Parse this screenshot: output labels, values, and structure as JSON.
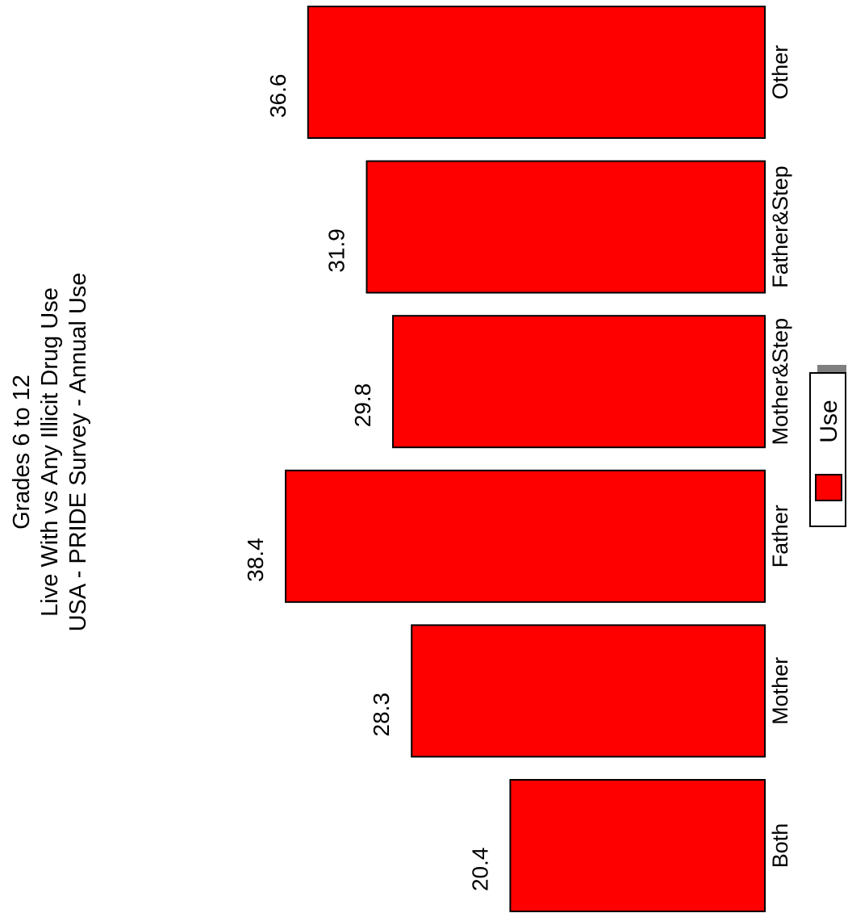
{
  "chart_data": {
    "type": "bar",
    "orientation": "horizontal",
    "title": [
      "Grades 6 to 12",
      "Live With vs Any Illicit Drug Use",
      "USA - PRIDE Survey - Annual Use"
    ],
    "categories": [
      "Both",
      "Mother",
      "Father",
      "Mother&Step",
      "Father&Step",
      "Other"
    ],
    "series": [
      {
        "name": "Use",
        "color": "#ff0000",
        "values": [
          20.4,
          28.3,
          38.4,
          29.8,
          31.9,
          36.6
        ]
      }
    ],
    "value_labels": [
      "20.4",
      "28.3",
      "38.4",
      "29.8",
      "31.9",
      "36.6"
    ],
    "xlabel": "",
    "ylabel": "",
    "grid": false,
    "legend": {
      "position": "right",
      "entries": [
        "Use"
      ]
    },
    "bar_color": "#ff0000",
    "bar_stroke": "#000000"
  }
}
